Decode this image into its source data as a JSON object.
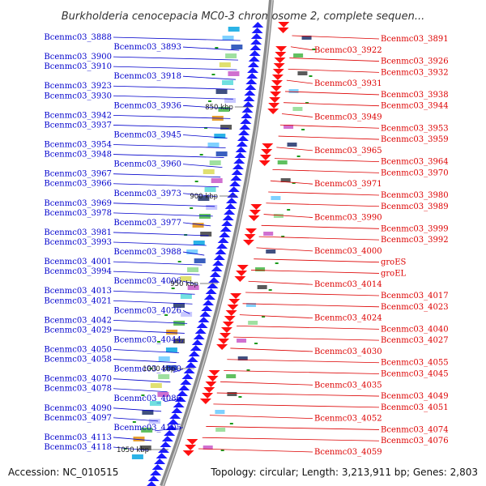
{
  "title": "Burkholderia cenocepacia MC0-3 chromosome 2, complete sequen...",
  "footer": {
    "accession": "Accession: NC_010515",
    "summary": "Topology: circular; Length: 3,213,911 bp; Genes: 2,803"
  },
  "colors": {
    "forward_strand": "#1a1aff",
    "reverse_strand": "#ff1111",
    "left_label": "#0000cc",
    "right_label": "#dd0000",
    "backbone": "#8a8a8a"
  },
  "ticks": [
    {
      "label": "850 kbp"
    },
    {
      "label": "900 kbp"
    },
    {
      "label": "950 kbp"
    },
    {
      "label": "1000 kbp"
    },
    {
      "label": "1050 kbp"
    }
  ],
  "left_genes": [
    "Bcenmc03_3888",
    "Bcenmc03_3893",
    "Bcenmc03_3900",
    "Bcenmc03_3910",
    "Bcenmc03_3918",
    "Bcenmc03_3923",
    "Bcenmc03_3930",
    "Bcenmc03_3936",
    "Bcenmc03_3942",
    "Bcenmc03_3937",
    "Bcenmc03_3945",
    "Bcenmc03_3954",
    "Bcenmc03_3948",
    "Bcenmc03_3960",
    "Bcenmc03_3967",
    "Bcenmc03_3966",
    "Bcenmc03_3973",
    "Bcenmc03_3969",
    "Bcenmc03_3978",
    "Bcenmc03_3977",
    "Bcenmc03_3981",
    "Bcenmc03_3993",
    "Bcenmc03_3988",
    "Bcenmc03_4001",
    "Bcenmc03_3994",
    "Bcenmc03_4006",
    "Bcenmc03_4013",
    "Bcenmc03_4021",
    "Bcenmc03_4026",
    "Bcenmc03_4042",
    "Bcenmc03_4029",
    "Bcenmc03_4044",
    "Bcenmc03_4050",
    "Bcenmc03_4058",
    "Bcenmc03_4060",
    "Bcenmc03_4070",
    "Bcenmc03_4078",
    "Bcenmc03_4086",
    "Bcenmc03_4090",
    "Bcenmc03_4097",
    "Bcenmc03_4105",
    "Bcenmc03_4113",
    "Bcenmc03_4118"
  ],
  "right_genes": [
    "Bcenmc03_3891",
    "Bcenmc03_3922",
    "Bcenmc03_3926",
    "Bcenmc03_3932",
    "Bcenmc03_3931",
    "Bcenmc03_3938",
    "Bcenmc03_3944",
    "Bcenmc03_3949",
    "Bcenmc03_3953",
    "Bcenmc03_3959",
    "Bcenmc03_3965",
    "Bcenmc03_3964",
    "Bcenmc03_3970",
    "Bcenmc03_3971",
    "Bcenmc03_3980",
    "Bcenmc03_3989",
    "Bcenmc03_3990",
    "Bcenmc03_3999",
    "Bcenmc03_3992",
    "Bcenmc03_4000",
    "groES",
    "groEL",
    "Bcenmc03_4014",
    "Bcenmc03_4017",
    "Bcenmc03_4023",
    "Bcenmc03_4024",
    "Bcenmc03_4040",
    "Bcenmc03_4027",
    "Bcenmc03_4030",
    "Bcenmc03_4055",
    "Bcenmc03_4045",
    "Bcenmc03_4035",
    "Bcenmc03_4049",
    "Bcenmc03_4051",
    "Bcenmc03_4052",
    "Bcenmc03_4074",
    "Bcenmc03_4076",
    "Bcenmc03_4059"
  ]
}
